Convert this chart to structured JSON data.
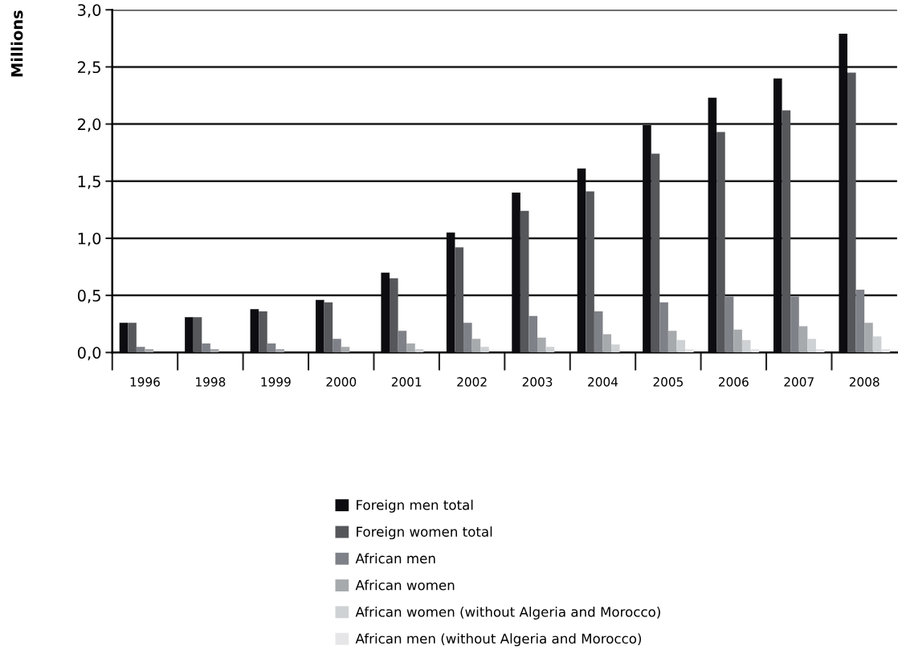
{
  "chart_data": {
    "type": "bar",
    "ylabel": "Millions",
    "categories": [
      "1996",
      "1998",
      "1999",
      "2000",
      "2001",
      "2002",
      "2003",
      "2004",
      "2005",
      "2006",
      "2007",
      "2008"
    ],
    "series": [
      {
        "name": "Foreign men total",
        "color": "#0d0c10",
        "values": [
          0.26,
          0.31,
          0.38,
          0.46,
          0.7,
          1.05,
          1.4,
          1.61,
          1.99,
          2.23,
          2.4,
          2.79
        ]
      },
      {
        "name": "Foreign women total",
        "color": "#55575a",
        "values": [
          0.26,
          0.31,
          0.36,
          0.44,
          0.65,
          0.92,
          1.24,
          1.41,
          1.74,
          1.93,
          2.12,
          2.45
        ]
      },
      {
        "name": "African men",
        "color": "#7f8188",
        "values": [
          0.05,
          0.08,
          0.08,
          0.12,
          0.19,
          0.26,
          0.32,
          0.36,
          0.44,
          0.49,
          0.49,
          0.55
        ]
      },
      {
        "name": "African women",
        "color": "#a7aaad",
        "values": [
          0.03,
          0.03,
          0.03,
          0.05,
          0.08,
          0.12,
          0.13,
          0.16,
          0.19,
          0.2,
          0.23,
          0.26
        ]
      },
      {
        "name": "African women (without Algeria and Morocco)",
        "color": "#cfd2d4",
        "values": [
          0,
          0,
          0,
          null,
          0.03,
          0.05,
          0.05,
          0.07,
          0.11,
          0.11,
          0.12,
          0.14
        ]
      },
      {
        "name": "African men (without Algeria and Morocco)",
        "color": "#e6e6e8",
        "values": [
          0,
          0,
          0,
          0,
          0,
          null,
          null,
          null,
          0.03,
          0.03,
          0.03,
          0.03
        ]
      }
    ],
    "ylim": [
      0,
      3.0
    ],
    "yticks": [
      {
        "value": 0,
        "label": "0,0"
      },
      {
        "value": 0.5,
        "label": "0,5"
      },
      {
        "value": 1.0,
        "label": "1,0"
      },
      {
        "value": 1.5,
        "label": "1,5"
      },
      {
        "value": 2.0,
        "label": "2,0"
      },
      {
        "value": 2.5,
        "label": "2,5"
      },
      {
        "value": 3.0,
        "label": "3,0"
      }
    ],
    "grid": "y",
    "legend": "bottom"
  }
}
